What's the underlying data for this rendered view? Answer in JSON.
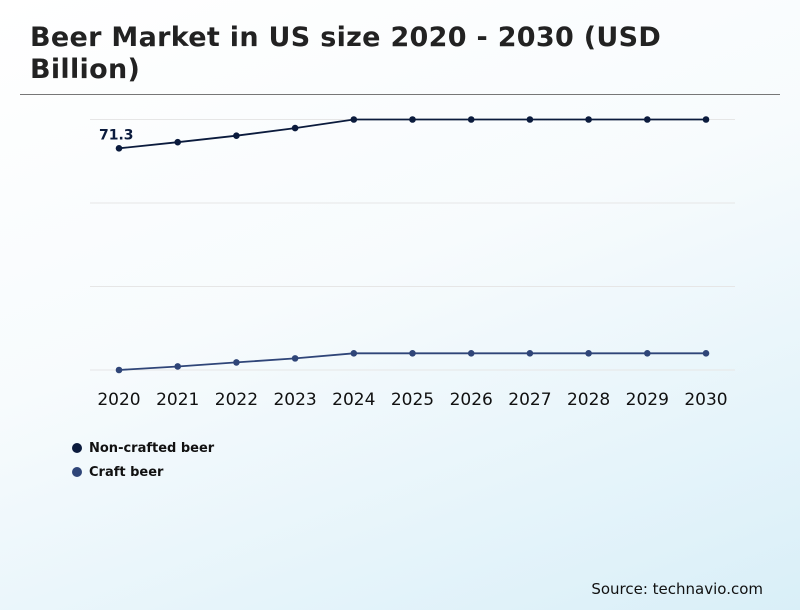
{
  "title": "Beer Market in US size 2020 - 2030 (USD Billion)",
  "source": "Source: technavio.com",
  "colors": {
    "non_crafted": "#0b1b3d",
    "craft": "#2f4578",
    "grid": "#e6e6e6"
  },
  "chart_data": {
    "type": "line",
    "title": "Beer Market in US size 2020 - 2030 (USD Billion)",
    "categories": [
      "2020",
      "2021",
      "2022",
      "2023",
      "2024",
      "2025",
      "2026",
      "2027",
      "2028",
      "2029",
      "2030"
    ],
    "series": [
      {
        "name": "Non-crafted beer",
        "values": [
          71.3,
          72.5,
          73.8,
          75.3,
          77.0,
          77.0,
          77.0,
          77.0,
          77.0,
          77.0,
          77.0
        ],
        "data_labels": {
          "0": "71.3"
        }
      },
      {
        "name": "Craft beer",
        "values": [
          27.4,
          28.1,
          28.9,
          29.7,
          30.7,
          30.7,
          30.7,
          30.7,
          30.7,
          30.7,
          30.7
        ]
      }
    ],
    "ylim": [
      27.4,
      77.0
    ],
    "grid": true,
    "y_tick_labels_shown": false,
    "legend_position": "bottom-left"
  }
}
